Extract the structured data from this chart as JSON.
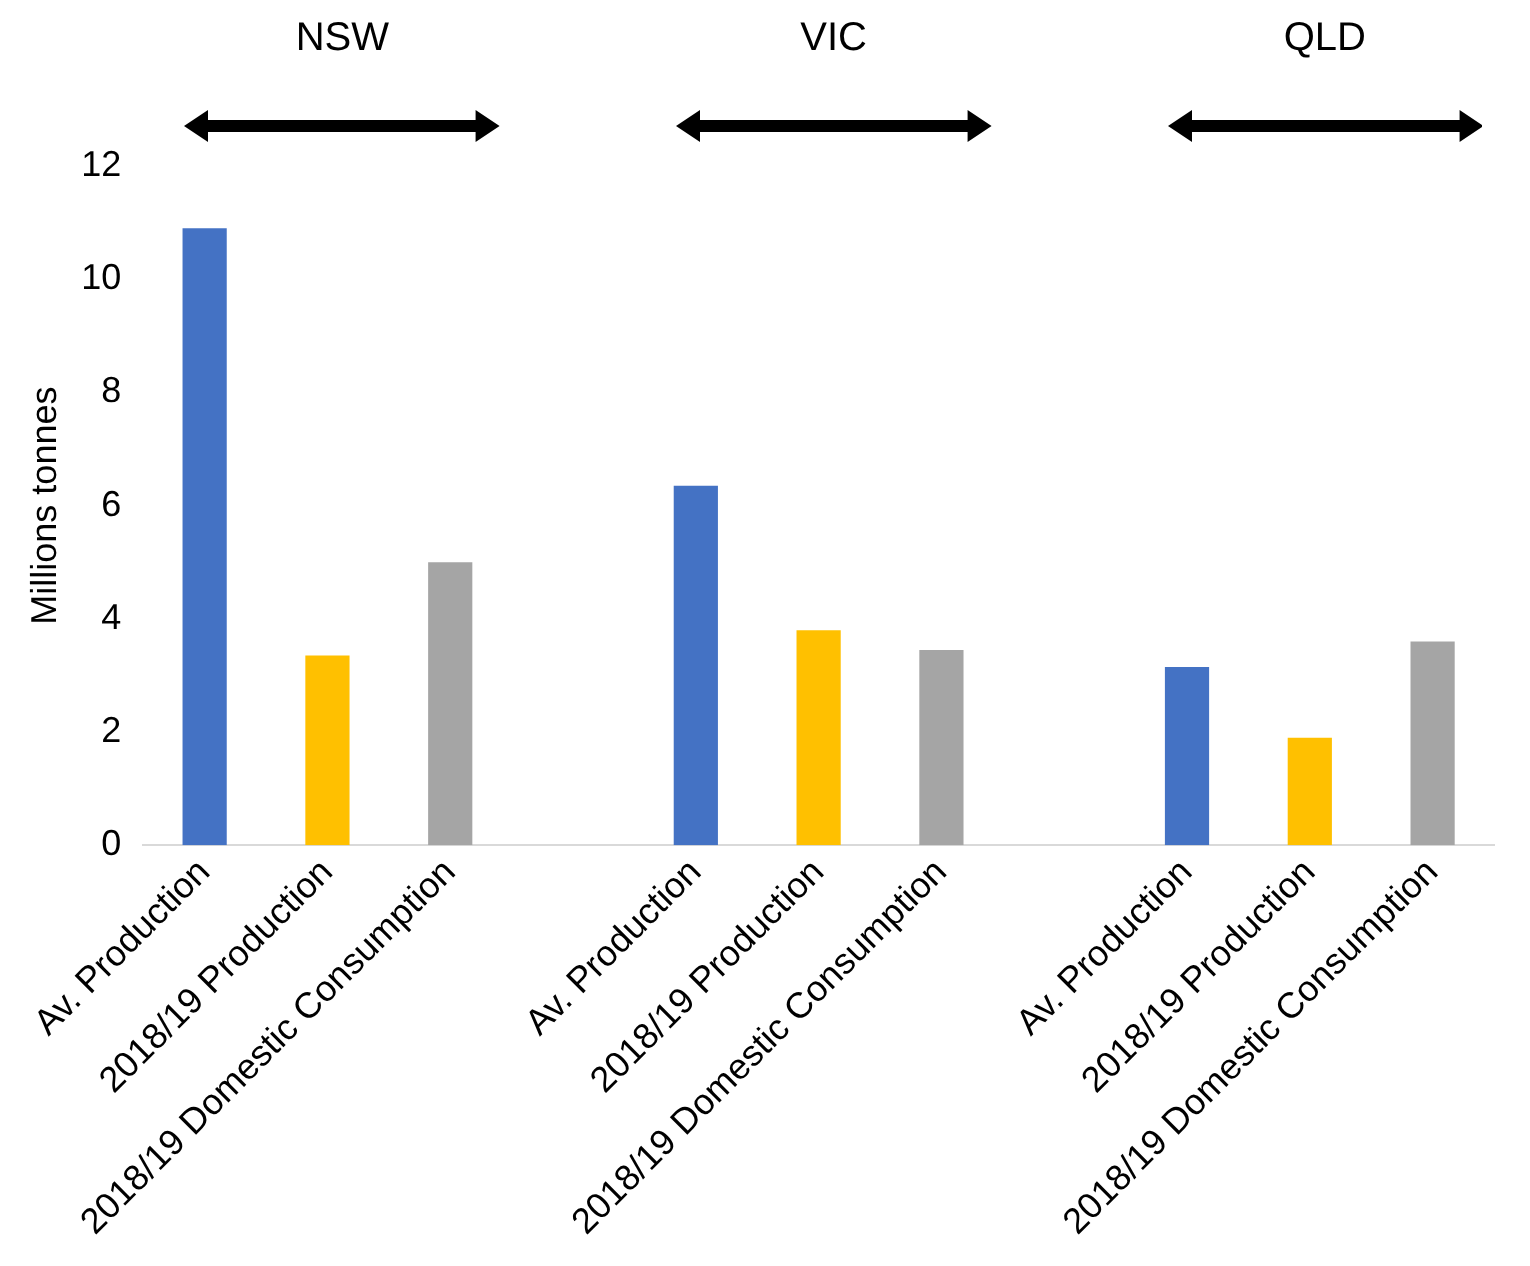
{
  "chart_data": {
    "type": "bar",
    "ylabel": "Millions tonnes",
    "categories": [
      "Av. Production",
      "2018/19 Production",
      "2018/19 Domestic Consumption",
      null,
      "Av. Production",
      "2018/19 Production",
      "2018/19 Domestic Consumption",
      null,
      "Av. Production",
      "2018/19 Production",
      "2018/19 Domestic Consumption"
    ],
    "values": [
      10.9,
      3.35,
      5.0,
      null,
      6.35,
      3.8,
      3.45,
      null,
      3.15,
      1.9,
      3.6
    ],
    "colors": [
      "#4472c4",
      "#ffc000",
      "#a5a5a5",
      null,
      "#4472c4",
      "#ffc000",
      "#a5a5a5",
      null,
      "#4472c4",
      "#ffc000",
      "#a5a5a5"
    ],
    "ylim": [
      0,
      12
    ],
    "yticks": [
      0,
      2,
      4,
      6,
      8,
      10,
      12
    ],
    "grid": false,
    "legend": false,
    "annotations": [
      "NSW",
      "VIC",
      "QLD"
    ]
  }
}
